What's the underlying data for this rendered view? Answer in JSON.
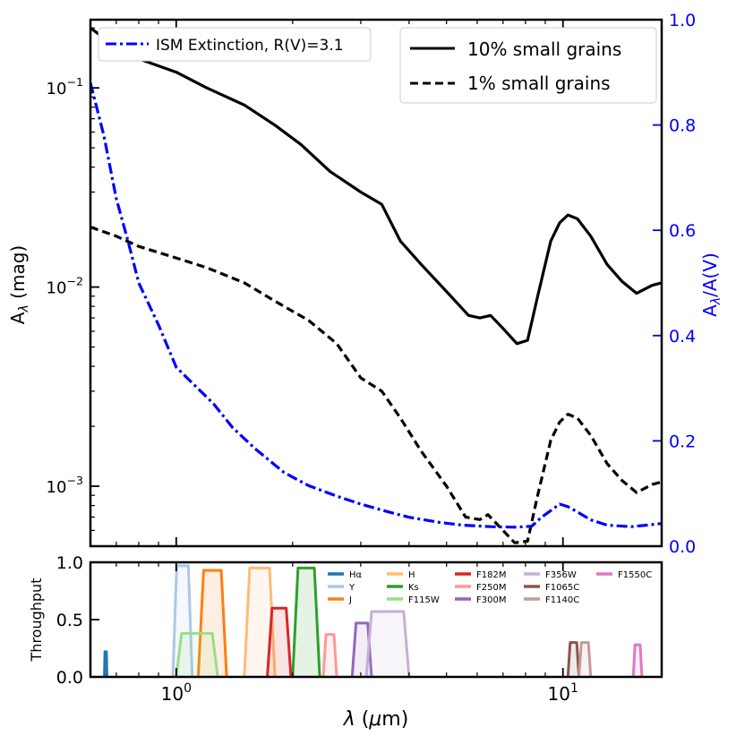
{
  "chart_data": [
    {
      "type": "line",
      "xscale": "log",
      "yscale": "log",
      "xlim": [
        0.6,
        18
      ],
      "ylim": [
        0.0005,
        0.22
      ],
      "ylabel": "A_λ (mag)",
      "y2label": "A_λ/A(V)",
      "y2lim": [
        0,
        1.0
      ],
      "y_ticks": [
        "10^-3",
        "10^-2",
        "10^-1"
      ],
      "y2_ticks": [
        "0.0",
        "0.2",
        "0.4",
        "0.6",
        "0.8",
        "1.0"
      ],
      "legend_right": {
        "placement": "top-right",
        "entries": [
          "10% small grains",
          "1% small grains"
        ]
      },
      "legend_left": {
        "placement": "top-left",
        "entries": [
          "ISM Extinction, R(V)=3.1"
        ]
      },
      "series": [
        {
          "name": "10% small grains",
          "style": "solid",
          "color": "#000000",
          "axis": "left",
          "points": [
            [
              0.6,
              0.2
            ],
            [
              0.7,
              0.16
            ],
            [
              0.8,
              0.14
            ],
            [
              1.0,
              0.12
            ],
            [
              1.2,
              0.1
            ],
            [
              1.5,
              0.082
            ],
            [
              1.8,
              0.065
            ],
            [
              2.1,
              0.052
            ],
            [
              2.5,
              0.038
            ],
            [
              3.0,
              0.03
            ],
            [
              3.4,
              0.026
            ],
            [
              3.8,
              0.017
            ],
            [
              4.3,
              0.013
            ],
            [
              5.0,
              0.0095
            ],
            [
              5.7,
              0.0072
            ],
            [
              6.1,
              0.007
            ],
            [
              6.5,
              0.0072
            ],
            [
              7.0,
              0.0062
            ],
            [
              7.6,
              0.0052
            ],
            [
              8.1,
              0.0054
            ],
            [
              8.6,
              0.009
            ],
            [
              9.3,
              0.017
            ],
            [
              9.8,
              0.021
            ],
            [
              10.3,
              0.023
            ],
            [
              10.9,
              0.022
            ],
            [
              11.8,
              0.018
            ],
            [
              13.0,
              0.013
            ],
            [
              14.2,
              0.0107
            ],
            [
              15.5,
              0.0093
            ],
            [
              17.0,
              0.0102
            ],
            [
              18.0,
              0.0105
            ]
          ]
        },
        {
          "name": "1% small grains",
          "style": "dashed",
          "color": "#000000",
          "axis": "left",
          "points": [
            [
              0.6,
              0.02
            ],
            [
              0.7,
              0.018
            ],
            [
              0.8,
              0.016
            ],
            [
              1.0,
              0.014
            ],
            [
              1.2,
              0.0125
            ],
            [
              1.5,
              0.0105
            ],
            [
              1.8,
              0.0085
            ],
            [
              2.2,
              0.0068
            ],
            [
              2.6,
              0.0052
            ],
            [
              3.0,
              0.0035
            ],
            [
              3.4,
              0.003
            ],
            [
              3.8,
              0.0022
            ],
            [
              4.3,
              0.0015
            ],
            [
              5.0,
              0.001
            ],
            [
              5.6,
              0.0007
            ],
            [
              6.1,
              0.00068
            ],
            [
              6.4,
              0.00072
            ],
            [
              7.0,
              0.0006
            ],
            [
              7.5,
              0.00052
            ],
            [
              8.1,
              0.00053
            ],
            [
              8.6,
              0.0009
            ],
            [
              9.3,
              0.0017
            ],
            [
              9.8,
              0.0021
            ],
            [
              10.3,
              0.0023
            ],
            [
              10.9,
              0.0022
            ],
            [
              11.8,
              0.0018
            ],
            [
              13.0,
              0.0013
            ],
            [
              14.2,
              0.00107
            ],
            [
              15.5,
              0.00093
            ],
            [
              17.0,
              0.00102
            ],
            [
              18.0,
              0.00105
            ]
          ]
        },
        {
          "name": "ISM Extinction, R(V)=3.1",
          "style": "dashdot",
          "color": "#0000ff",
          "axis": "right",
          "points": [
            [
              0.6,
              0.88
            ],
            [
              0.65,
              0.78
            ],
            [
              0.7,
              0.66
            ],
            [
              0.75,
              0.58
            ],
            [
              0.8,
              0.5
            ],
            [
              0.9,
              0.42
            ],
            [
              1.0,
              0.34
            ],
            [
              1.1,
              0.31
            ],
            [
              1.25,
              0.27
            ],
            [
              1.4,
              0.225
            ],
            [
              1.6,
              0.185
            ],
            [
              1.9,
              0.14
            ],
            [
              2.2,
              0.115
            ],
            [
              2.6,
              0.095
            ],
            [
              3.0,
              0.08
            ],
            [
              3.5,
              0.066
            ],
            [
              4.0,
              0.055
            ],
            [
              4.8,
              0.045
            ],
            [
              5.5,
              0.04
            ],
            [
              6.5,
              0.037
            ],
            [
              7.5,
              0.036
            ],
            [
              8.3,
              0.038
            ],
            [
              8.8,
              0.055
            ],
            [
              9.4,
              0.07
            ],
            [
              9.8,
              0.08
            ],
            [
              10.3,
              0.075
            ],
            [
              10.9,
              0.065
            ],
            [
              11.8,
              0.05
            ],
            [
              13.0,
              0.04
            ],
            [
              15.0,
              0.037
            ],
            [
              16.5,
              0.04
            ],
            [
              18.0,
              0.043
            ]
          ]
        }
      ]
    },
    {
      "type": "area",
      "xscale": "log",
      "xlim": [
        0.6,
        18
      ],
      "ylim": [
        0,
        1.0
      ],
      "xlabel": "λ (μm)",
      "ylabel": "Throughput",
      "x_ticks": [
        "10^0",
        "10^1"
      ],
      "y_ticks": [
        "0.0",
        "0.5",
        "1.0"
      ],
      "legend_placement": "top-right",
      "filters": [
        {
          "name": "Hα",
          "color": "#1f77b4",
          "bands": [
            [
              0.652,
              0.662,
              0.22
            ]
          ]
        },
        {
          "name": "Y",
          "color": "#aec7e8",
          "bands": [
            [
              0.98,
              1.1,
              0.97
            ]
          ]
        },
        {
          "name": "J",
          "color": "#ff7f0e",
          "bands": [
            [
              1.14,
              1.35,
              0.93
            ]
          ]
        },
        {
          "name": "H",
          "color": "#ffbb78",
          "bands": [
            [
              1.5,
              1.8,
              0.95
            ]
          ]
        },
        {
          "name": "Ks",
          "color": "#2ca02c",
          "bands": [
            [
              2.0,
              2.35,
              0.95
            ]
          ]
        },
        {
          "name": "F115W",
          "color": "#98df8a",
          "bands": [
            [
              1.0,
              1.28,
              0.38
            ]
          ]
        },
        {
          "name": "F182M",
          "color": "#d62728",
          "bands": [
            [
              1.72,
              1.98,
              0.6
            ]
          ]
        },
        {
          "name": "F250M",
          "color": "#ff9896",
          "bands": [
            [
              2.4,
              2.6,
              0.37
            ]
          ]
        },
        {
          "name": "F300M",
          "color": "#9467bd",
          "bands": [
            [
              2.85,
              3.2,
              0.47
            ]
          ]
        },
        {
          "name": "F356W",
          "color": "#c5b0d5",
          "bands": [
            [
              3.1,
              4.0,
              0.57
            ]
          ]
        },
        {
          "name": "F1065C",
          "color": "#8c564b",
          "bands": [
            [
              10.3,
              11.0,
              0.3
            ]
          ]
        },
        {
          "name": "F1140C",
          "color": "#c49c94",
          "bands": [
            [
              11.0,
              11.8,
              0.3
            ]
          ]
        },
        {
          "name": "F1550C",
          "color": "#e377c2",
          "bands": [
            [
              15.2,
              16.0,
              0.28
            ]
          ]
        }
      ]
    }
  ]
}
